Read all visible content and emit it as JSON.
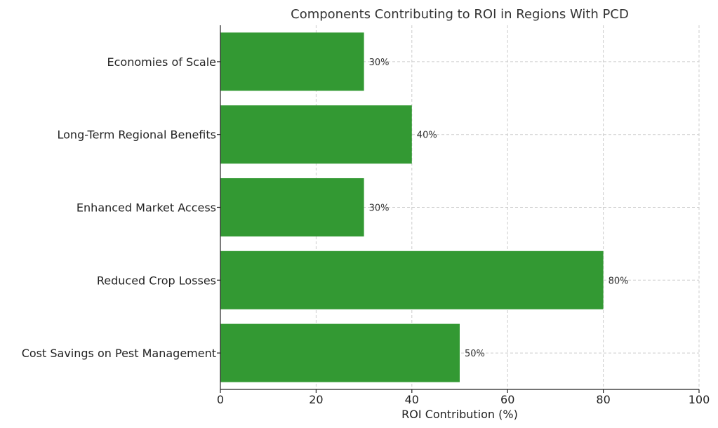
{
  "chart_data": {
    "type": "bar",
    "orientation": "horizontal",
    "title": "Components Contributing to ROI in Regions With PCD",
    "xlabel": "ROI Contribution (%)",
    "ylabel": "",
    "xlim": [
      0,
      100
    ],
    "xticks": [
      0,
      20,
      40,
      60,
      80,
      100
    ],
    "xtick_labels": [
      "0",
      "20",
      "40",
      "60",
      "80",
      "100"
    ],
    "grid": true,
    "bar_color": "#339933",
    "categories": [
      "Economies of Scale",
      "Long-Term Regional Benefits",
      "Enhanced Market Access",
      "Reduced Crop Losses",
      "Cost Savings on Pest Management"
    ],
    "values": [
      30,
      40,
      30,
      80,
      50
    ],
    "value_labels": [
      "30%",
      "40%",
      "30%",
      "80%",
      "50%"
    ]
  }
}
